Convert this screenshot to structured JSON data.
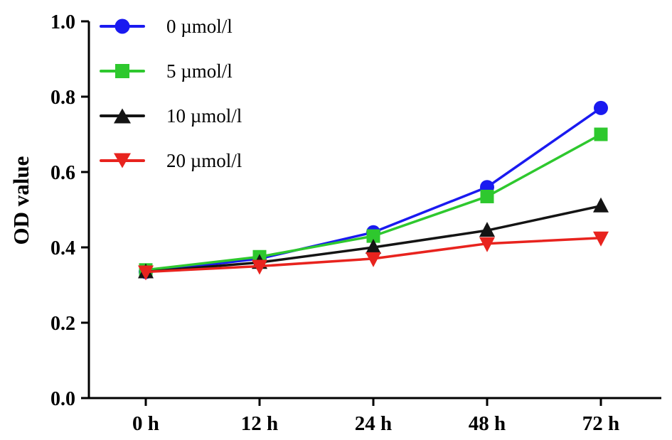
{
  "chart_data": {
    "type": "line",
    "x": [
      "0 h",
      "12 h",
      "24 h",
      "48 h",
      "72 h"
    ],
    "title": "",
    "xlabel": "",
    "ylabel": "OD value",
    "ylim": [
      0.0,
      1.0
    ],
    "yticks": [
      0.0,
      0.2,
      0.4,
      0.6,
      0.8,
      1.0
    ],
    "grid": false,
    "legend_position": "top-left",
    "series": [
      {
        "name": "0 µmol/l",
        "color": "#1a1af0",
        "marker": "circle",
        "values": [
          0.335,
          0.37,
          0.44,
          0.56,
          0.77
        ]
      },
      {
        "name": "5 µmol/l",
        "color": "#2ec82e",
        "marker": "square",
        "values": [
          0.34,
          0.375,
          0.43,
          0.535,
          0.7
        ]
      },
      {
        "name": "10 µmol/l",
        "color": "#141414",
        "marker": "triangle-up",
        "values": [
          0.335,
          0.36,
          0.4,
          0.445,
          0.51
        ]
      },
      {
        "name": "20 µmol/l",
        "color": "#e8231e",
        "marker": "triangle-down",
        "values": [
          0.335,
          0.35,
          0.37,
          0.41,
          0.425
        ]
      }
    ]
  }
}
